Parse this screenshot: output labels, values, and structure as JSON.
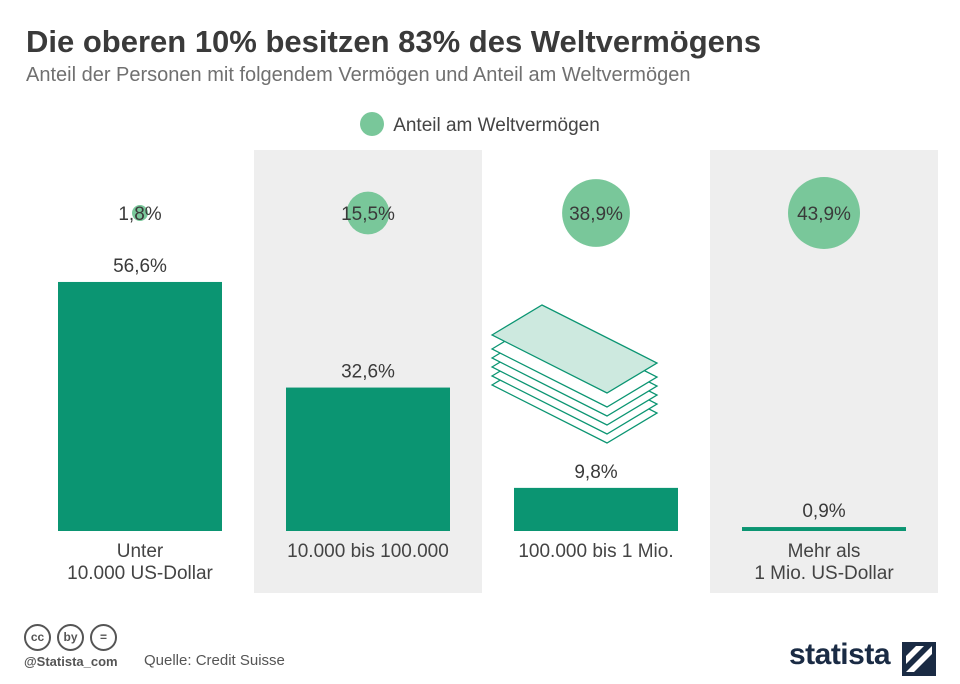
{
  "title": "Die oberen 10% besitzen 83% des Weltvermögens",
  "subtitle": "Anteil der Personen mit folgendem Vermögen und Anteil am Weltvermögen",
  "legend": {
    "label": "Anteil am Weltvermögen"
  },
  "colors": {
    "bar": "#0b9572",
    "bubble": "#79c79a",
    "panel_shade": "#eeeeee",
    "money_icon": "#0b9572",
    "money_fill": "#cde9df"
  },
  "chart_data": {
    "type": "bar",
    "categories": [
      [
        "Unter",
        "10.000 US-Dollar"
      ],
      [
        "10.000 bis 100.000"
      ],
      [
        "100.000 bis 1 Mio."
      ],
      [
        "Mehr als",
        "1 Mio. US-Dollar"
      ]
    ],
    "series": [
      {
        "name": "",
        "values": [
          56.6,
          32.6,
          9.8,
          0.9
        ],
        "labels": [
          "56,6%",
          "32,6%",
          "9,8%",
          "0,9%"
        ]
      },
      {
        "name": "Anteil am Weltvermögen",
        "values": [
          1.8,
          15.5,
          38.9,
          43.9
        ],
        "labels": [
          "1,8%",
          "15,5%",
          "38,9%",
          "43,9%"
        ]
      }
    ],
    "ylim": [
      0,
      60
    ],
    "shaded_columns": [
      1,
      3
    ],
    "icon": "money-stack-icon"
  },
  "footer": {
    "cc_icons": [
      "cc",
      "by",
      "="
    ],
    "handle": "@Statista_com",
    "source": "Quelle: Credit Suisse",
    "brand": "statista"
  }
}
